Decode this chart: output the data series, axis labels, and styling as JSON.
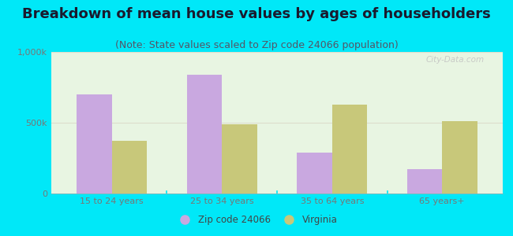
{
  "title": "Breakdown of mean house values by ages of householders",
  "subtitle": "(Note: State values scaled to Zip code 24066 population)",
  "categories": [
    "15 to 24 years",
    "25 to 34 years",
    "35 to 64 years",
    "65 years+"
  ],
  "zip_values": [
    700000,
    840000,
    290000,
    175000
  ],
  "state_values": [
    370000,
    490000,
    630000,
    510000
  ],
  "zip_color": "#c9a8e0",
  "state_color": "#c8c87a",
  "background_outer": "#00e8f8",
  "background_inner_color": "#e8f5e2",
  "ylim": [
    0,
    1000000
  ],
  "ytick_labels": [
    "0",
    "500k",
    "1,000k"
  ],
  "legend_zip": "Zip code 24066",
  "legend_virginia": "Virginia",
  "title_fontsize": 13,
  "subtitle_fontsize": 9,
  "watermark": "City-Data.com"
}
